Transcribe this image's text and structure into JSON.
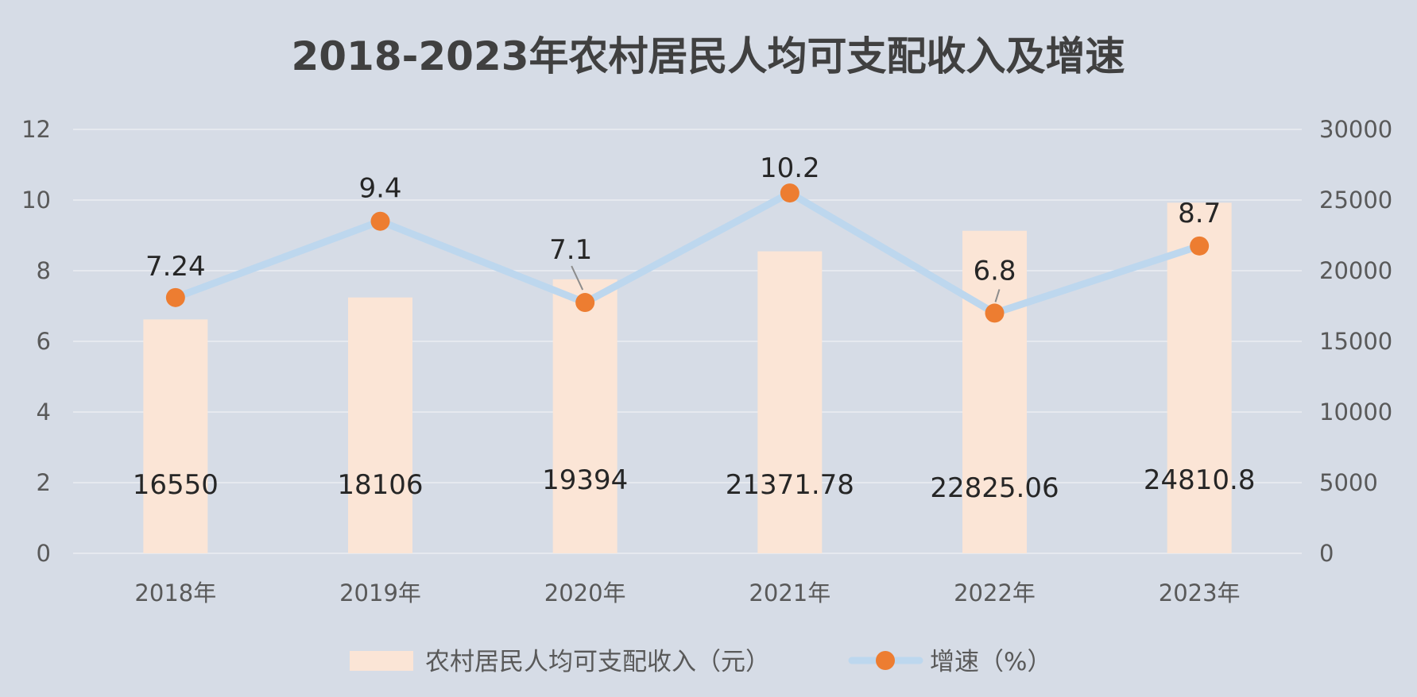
{
  "chart_data": {
    "type": "bar",
    "title": "2018-2023年农村居民人均可支配收入及增速",
    "categories": [
      "2018年",
      "2019年",
      "2020年",
      "2021年",
      "2022年",
      "2023年"
    ],
    "series": [
      {
        "name": "农村居民人均可支配收入（元）",
        "type": "bar",
        "axis": "right",
        "values": [
          16550,
          18106,
          19394,
          21371.78,
          22825.06,
          24810.8
        ],
        "labels": [
          "16550",
          "18106",
          "19394",
          "21371.78",
          "22825.06",
          "24810.8"
        ]
      },
      {
        "name": "增速（%）",
        "type": "line",
        "axis": "left",
        "values": [
          7.24,
          9.4,
          7.1,
          10.2,
          6.8,
          8.7
        ],
        "labels": [
          "7.24",
          "9.4",
          "7.1",
          "10.2",
          "6.8",
          "8.7"
        ]
      }
    ],
    "y_left": {
      "min": 0,
      "max": 12,
      "ticks": [
        "0",
        "2",
        "4",
        "6",
        "8",
        "10",
        "12"
      ]
    },
    "y_right": {
      "min": 0,
      "max": 30000,
      "ticks": [
        "0",
        "5000",
        "10000",
        "15000",
        "20000",
        "25000",
        "30000"
      ]
    },
    "grid": true,
    "legend_position": "bottom",
    "colors": {
      "background": "#d6dce6",
      "bar": "#fbe5d6",
      "line": "#bdd7ee",
      "marker": "#ed7d31",
      "grid": "#e6e9ef"
    }
  }
}
